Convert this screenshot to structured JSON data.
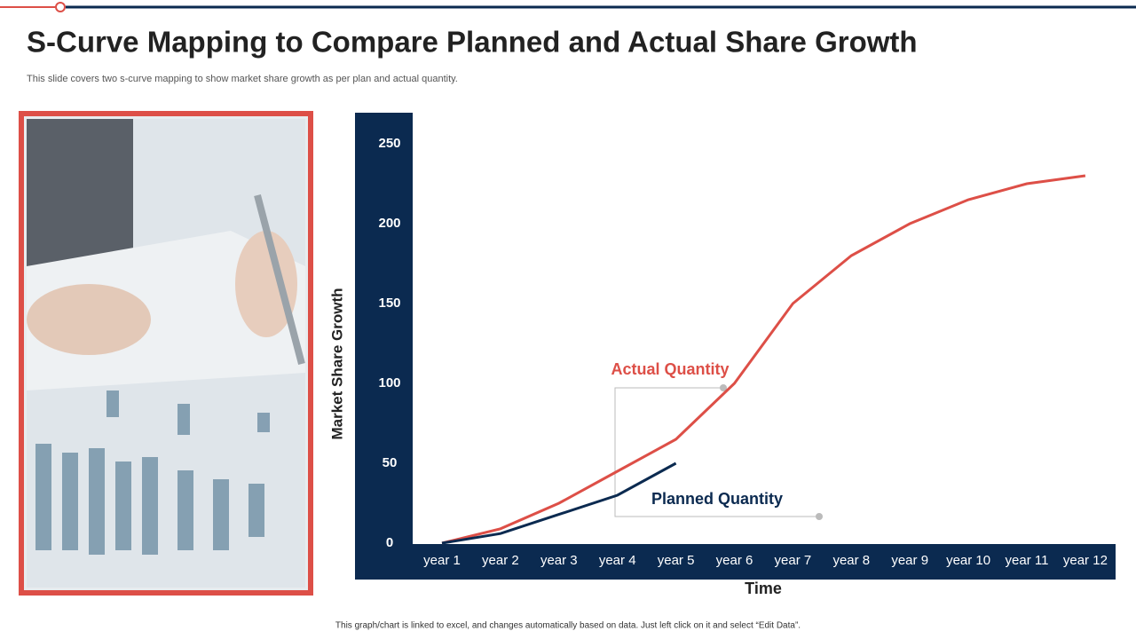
{
  "chart_data": {
    "type": "line",
    "title": "S-Curve Mapping to Compare Planned and Actual Share Growth",
    "subtitle": "This slide covers two s-curve mapping to show market share growth as per plan and actual quantity.",
    "footnote": "This graph/chart is linked to excel, and changes automatically based on data. Just left click on it and select “Edit Data”.",
    "x_label": "Time",
    "y_label": "Market Share Growth",
    "categories": [
      "year 1",
      "year 2",
      "year 3",
      "year 4",
      "year 5",
      "year 6",
      "year 7",
      "year 8",
      "year 9",
      "year 10",
      "year 11",
      "year 12"
    ],
    "series": [
      {
        "name": "Actual Quantity",
        "color": "#dd4f47",
        "values": [
          0,
          9,
          25,
          45,
          65,
          100,
          150,
          180,
          200,
          215,
          225,
          230
        ]
      },
      {
        "name": "Planned Quantity",
        "color": "#0b2a50",
        "values": [
          0,
          6,
          18,
          30,
          50,
          null,
          null,
          null,
          null,
          null,
          null,
          null
        ]
      }
    ],
    "ylim": [
      0,
      250
    ],
    "yticks": [
      0,
      50,
      100,
      150,
      200,
      250
    ],
    "grid": false
  }
}
